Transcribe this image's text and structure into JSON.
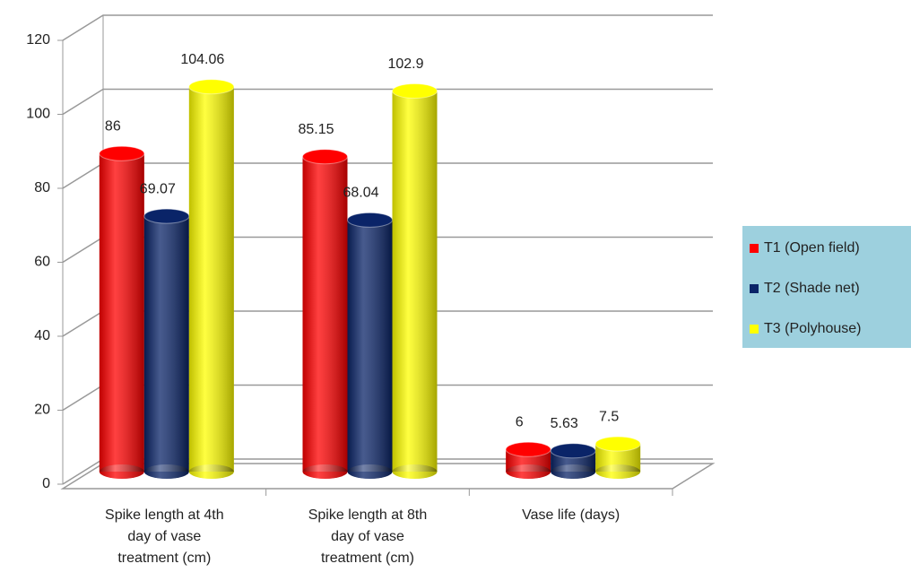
{
  "chart_data": {
    "type": "bar",
    "categories": [
      "Spike length at 4th day of  vase treatment (cm)",
      "Spike length at 8th day of  vase treatment (cm)",
      "Vase life (days)"
    ],
    "series": [
      {
        "name": "T1 (Open field)",
        "color": "#ff0000",
        "values": [
          86,
          85.15,
          6
        ]
      },
      {
        "name": "T2 (Shade net)",
        "color": "#0a2468",
        "values": [
          69.07,
          68.04,
          5.63
        ]
      },
      {
        "name": "T3 (Polyhouse)",
        "color": "#ffff00",
        "values": [
          104.06,
          102.9,
          7.5
        ]
      }
    ],
    "ylim": [
      0,
      120
    ],
    "yticks": [
      0,
      20,
      40,
      60,
      80,
      100,
      120
    ],
    "grid": true,
    "legend": "right"
  }
}
